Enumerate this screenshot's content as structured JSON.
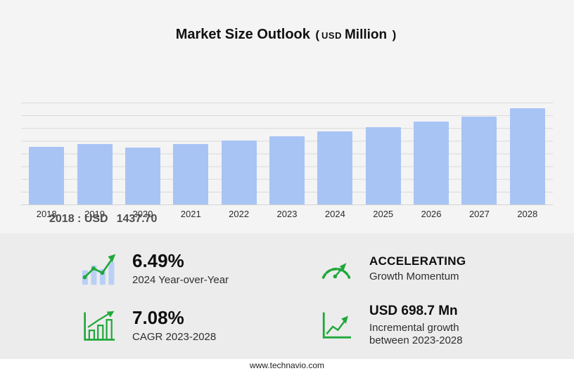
{
  "title": {
    "main": "Market Size Outlook",
    "paren_open": "(",
    "currency": "USD",
    "unit": "Million",
    "paren_close": ")"
  },
  "chart_data": {
    "type": "bar",
    "categories": [
      "2018",
      "2019",
      "2020",
      "2021",
      "2022",
      "2023",
      "2024",
      "2025",
      "2026",
      "2027",
      "2028"
    ],
    "values": [
      1437.7,
      1515,
      1425,
      1510,
      1605,
      1712.5,
      1823.7,
      1942.1,
      2068.2,
      2202.5,
      2411.2
    ],
    "title": "Market Size Outlook (USD Million)",
    "xlabel": "",
    "ylabel": "",
    "ylim": [
      0,
      2550
    ],
    "grid": true,
    "legend": "none",
    "bar_color": "#a8c4f4",
    "labeled_point": {
      "category": "2018",
      "label": "2018 : USD",
      "value": "1437.70"
    }
  },
  "annotation": {
    "label": "2018 : USD",
    "value": "1437.70"
  },
  "stats": [
    {
      "icon": "yoy-bar-chart-icon",
      "value": "6.49%",
      "label": "2024 Year-over-Year"
    },
    {
      "icon": "speedometer-icon",
      "value": "ACCELERATING",
      "label": "Growth Momentum"
    },
    {
      "icon": "cagr-growth-chart-icon",
      "value": "7.08%",
      "label": "CAGR 2023-2028"
    },
    {
      "icon": "incremental-growth-icon",
      "value": "USD 698.7 Mn",
      "label": "Incremental growth between 2023-2028"
    }
  ],
  "footer": {
    "url": "www.technavio.com"
  },
  "colors": {
    "bar": "#a8c4f4",
    "green": "#1fa83a",
    "panel_bg": "#ececec",
    "page_bg": "#f4f4f4"
  }
}
